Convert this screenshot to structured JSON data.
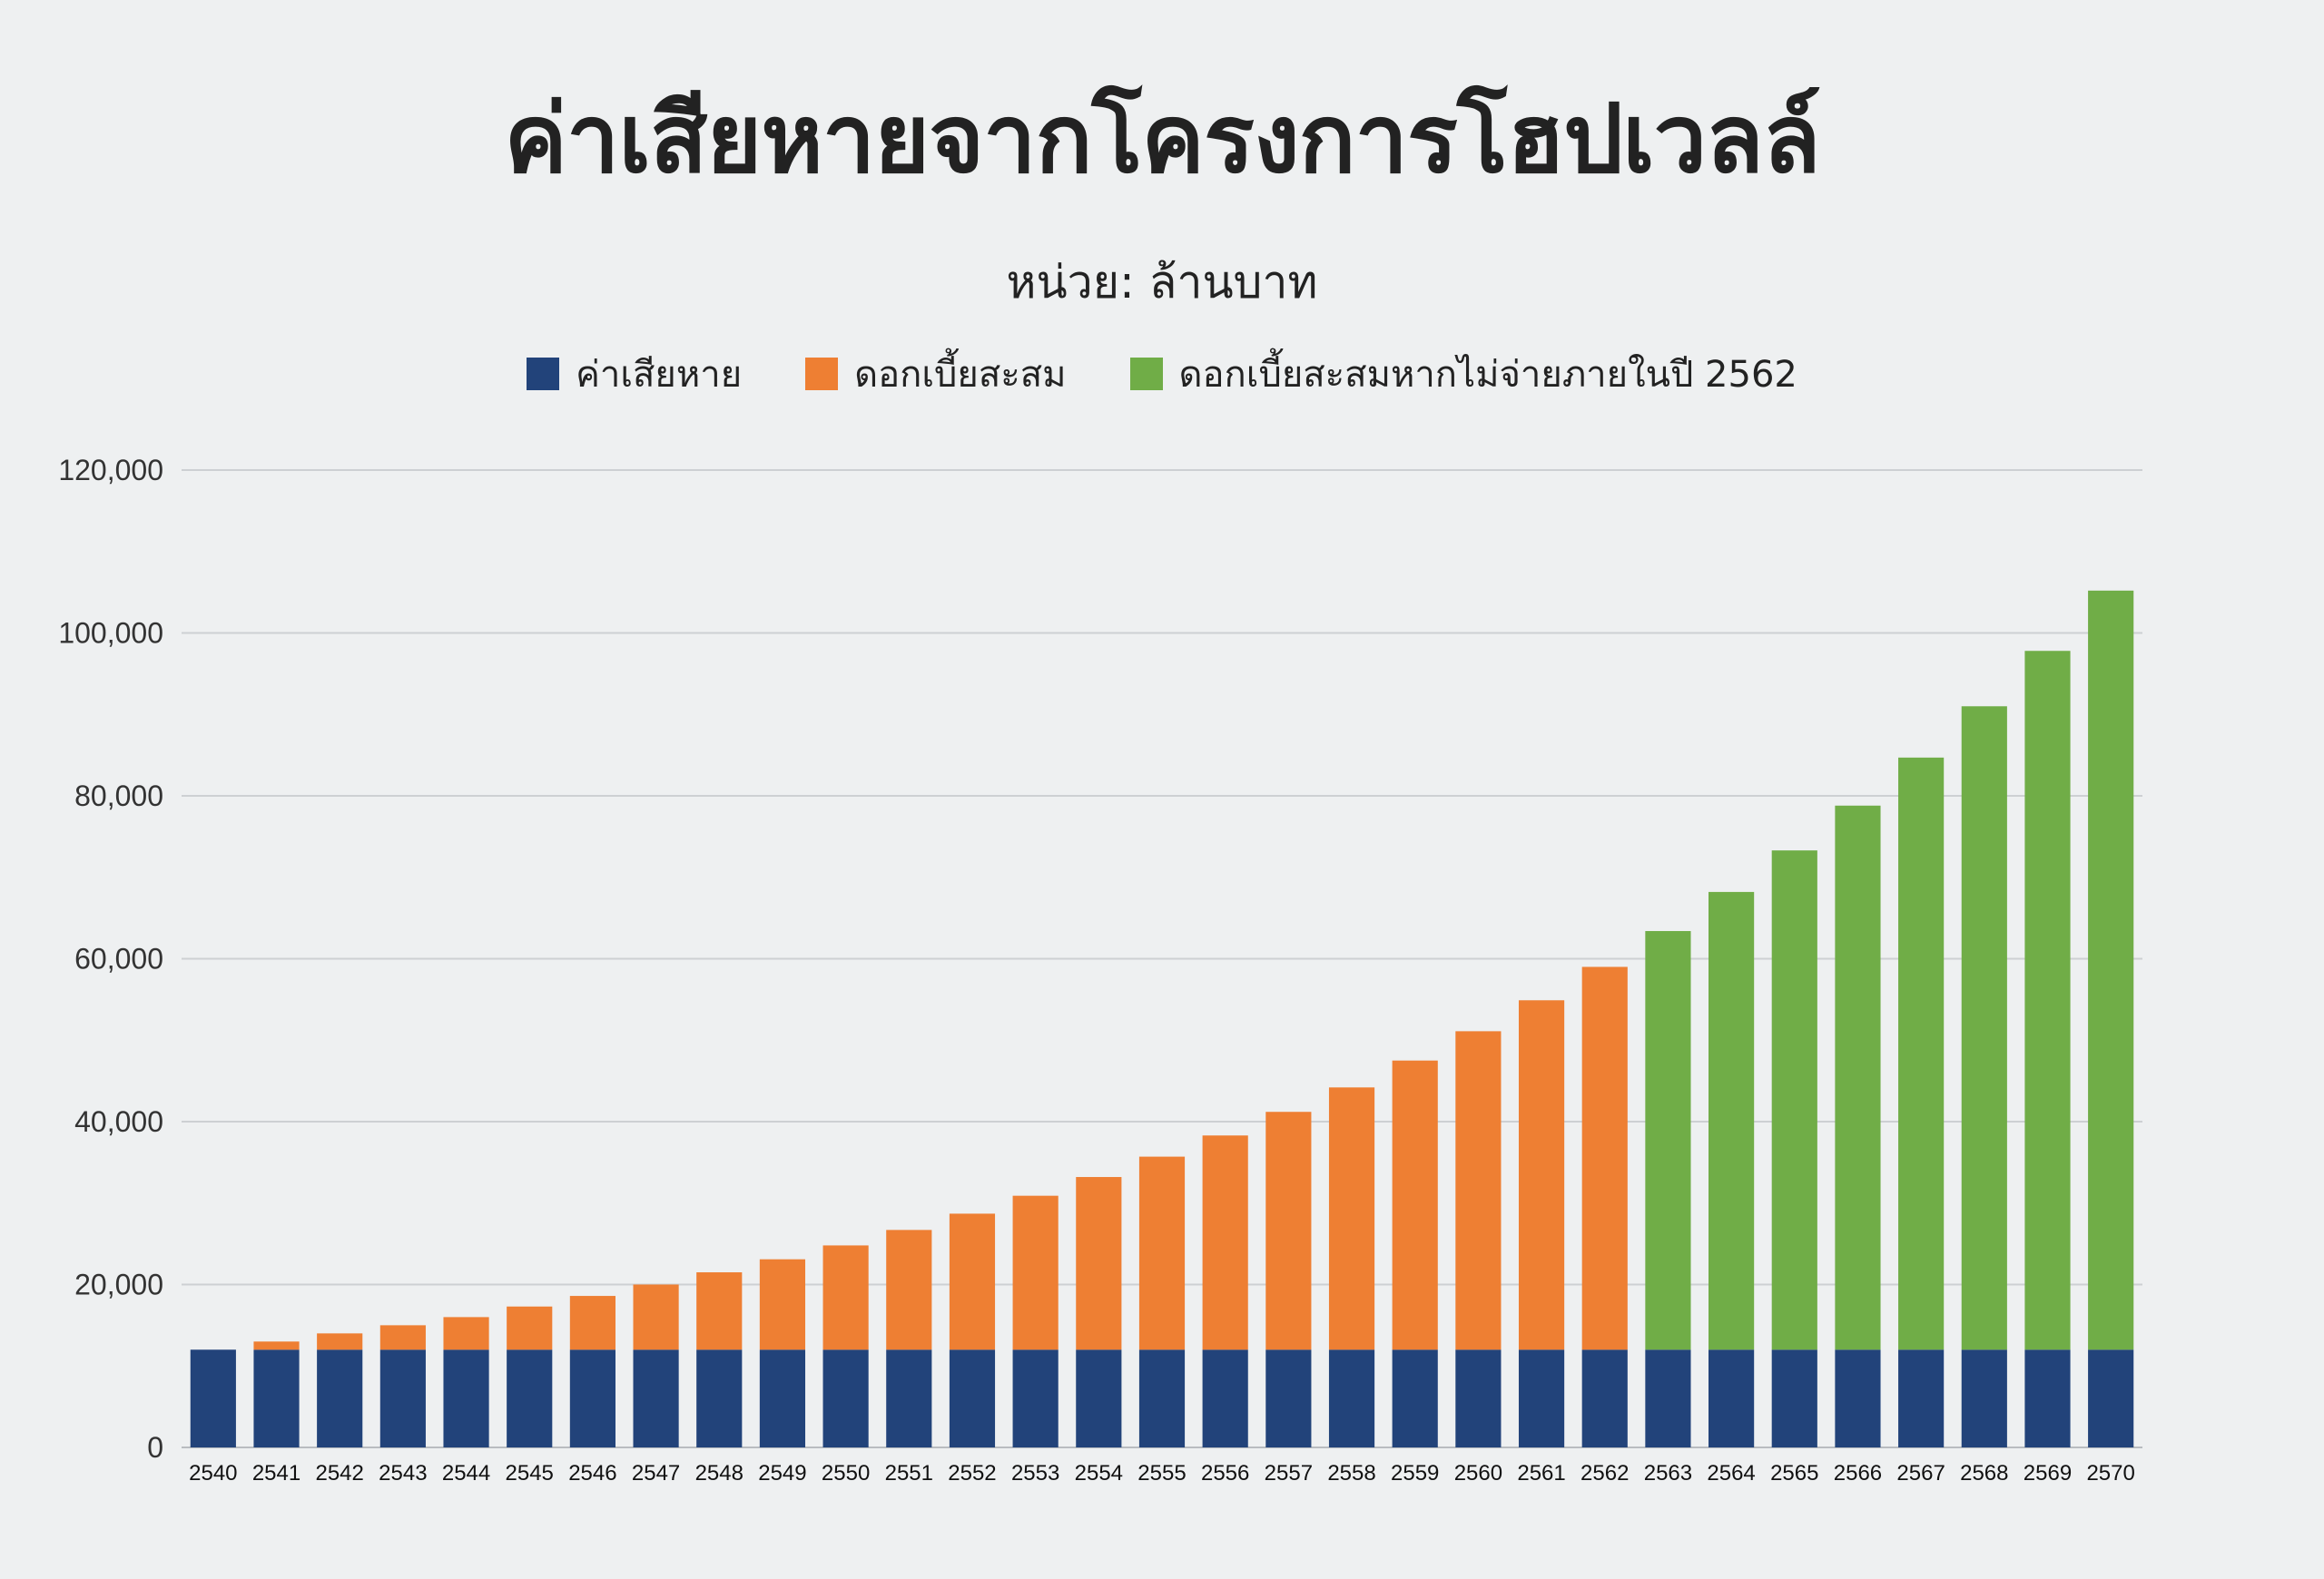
{
  "title": "ค่าเสียหายจากโครงการโฮปเวลล์",
  "subtitle": "หน่วย: ล้านบาท",
  "legend": [
    {
      "label": "ค่าเสียหาย",
      "color": "#22437a"
    },
    {
      "label": "ดอกเบี้ยสะสม",
      "color": "#ee7f33"
    },
    {
      "label": "ดอกเบี้ยสะสมหากไม่จ่ายภายในปี 2562",
      "color": "#70ad47"
    }
  ],
  "chart_data": {
    "type": "bar",
    "stacked": true,
    "categories": [
      "2540",
      "2541",
      "2542",
      "2543",
      "2544",
      "2545",
      "2546",
      "2547",
      "2548",
      "2549",
      "2550",
      "2551",
      "2552",
      "2553",
      "2554",
      "2555",
      "2556",
      "2557",
      "2558",
      "2559",
      "2560",
      "2561",
      "2562",
      "2563",
      "2564",
      "2565",
      "2566",
      "2567",
      "2568",
      "2569",
      "2570"
    ],
    "series": [
      {
        "name": "ค่าเสียหาย",
        "color": "#22437a",
        "values": [
          12000,
          12000,
          12000,
          12000,
          12000,
          12000,
          12000,
          12000,
          12000,
          12000,
          12000,
          12000,
          12000,
          12000,
          12000,
          12000,
          12000,
          12000,
          12000,
          12000,
          12000,
          12000,
          12000,
          12000,
          12000,
          12000,
          12000,
          12000,
          12000,
          12000,
          12000
        ]
      },
      {
        "name": "ดอกเบี้ยสะสม",
        "color": "#ee7f33",
        "values": [
          0,
          1000,
          2000,
          3000,
          4000,
          5300,
          6600,
          8000,
          9500,
          11100,
          12800,
          14700,
          16700,
          18900,
          21200,
          23700,
          26300,
          29200,
          32200,
          35500,
          39100,
          42900,
          47000,
          0,
          0,
          0,
          0,
          0,
          0,
          0,
          0
        ]
      },
      {
        "name": "ดอกเบี้ยสะสมหากไม่จ่ายภายในปี 2562",
        "color": "#70ad47",
        "values": [
          0,
          0,
          0,
          0,
          0,
          0,
          0,
          0,
          0,
          0,
          0,
          0,
          0,
          0,
          0,
          0,
          0,
          0,
          0,
          0,
          0,
          0,
          0,
          51400,
          56200,
          61300,
          66800,
          72700,
          79000,
          85800,
          93200
        ]
      }
    ],
    "y_ticks": [
      "0",
      "20,000",
      "40,000",
      "60,000",
      "80,000",
      "100,000",
      "120,000"
    ],
    "ylim": [
      0,
      120000
    ],
    "grid": true,
    "legend_position": "top-center"
  }
}
